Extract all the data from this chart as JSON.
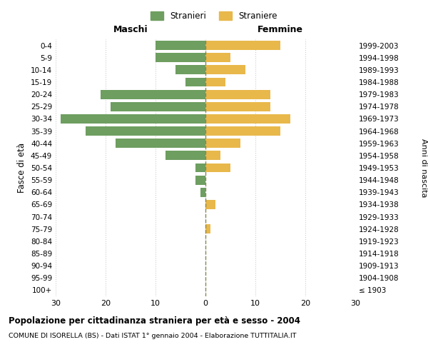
{
  "age_groups": [
    "100+",
    "95-99",
    "90-94",
    "85-89",
    "80-84",
    "75-79",
    "70-74",
    "65-69",
    "60-64",
    "55-59",
    "50-54",
    "45-49",
    "40-44",
    "35-39",
    "30-34",
    "25-29",
    "20-24",
    "15-19",
    "10-14",
    "5-9",
    "0-4"
  ],
  "birth_years": [
    "≤ 1903",
    "1904-1908",
    "1909-1913",
    "1914-1918",
    "1919-1923",
    "1924-1928",
    "1929-1933",
    "1934-1938",
    "1939-1943",
    "1944-1948",
    "1949-1953",
    "1954-1958",
    "1959-1963",
    "1964-1968",
    "1969-1973",
    "1974-1978",
    "1979-1983",
    "1984-1988",
    "1989-1993",
    "1994-1998",
    "1999-2003"
  ],
  "males": [
    0,
    0,
    0,
    0,
    0,
    0,
    0,
    0,
    1,
    2,
    2,
    8,
    18,
    24,
    29,
    19,
    21,
    4,
    6,
    10,
    10
  ],
  "females": [
    0,
    0,
    0,
    0,
    0,
    1,
    0,
    2,
    0,
    0,
    5,
    3,
    7,
    15,
    17,
    13,
    13,
    4,
    8,
    5,
    15
  ],
  "male_color": "#6e9e60",
  "female_color": "#e8b84b",
  "background_color": "#ffffff",
  "grid_color": "#cccccc",
  "center_line_color": "#888855",
  "xlim": 30,
  "title": "Popolazione per cittadinanza straniera per età e sesso - 2004",
  "subtitle": "COMUNE DI ISORELLA (BS) - Dati ISTAT 1° gennaio 2004 - Elaborazione TUTTITALIA.IT",
  "ylabel_left": "Fasce di età",
  "ylabel_right": "Anni di nascita",
  "xlabel_left": "Maschi",
  "xlabel_right": "Femmine",
  "legend_stranieri": "Stranieri",
  "legend_straniere": "Straniere"
}
